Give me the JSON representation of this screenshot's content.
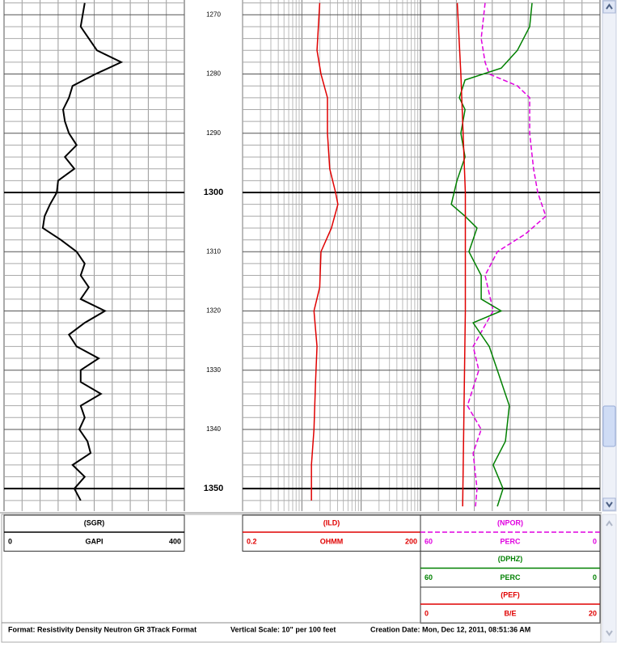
{
  "depth_axis": {
    "ylim": [
      1267.5,
      1353.8
    ],
    "ticks": [
      1270,
      1280,
      1290,
      1300,
      1310,
      1320,
      1330,
      1340,
      1350
    ]
  },
  "tracks": [
    {
      "log": false,
      "curves": [
        {
          "name": "(SGR)",
          "unit": "GAPI",
          "left": 0,
          "right": 400,
          "color": "#000000",
          "dash": false,
          "depths": [
            1268,
            1272,
            1276,
            1278,
            1280,
            1282,
            1284,
            1286,
            1288,
            1290,
            1292,
            1294,
            1296,
            1298,
            1300,
            1302,
            1304,
            1306,
            1308,
            1310,
            1312,
            1314,
            1316,
            1318,
            1320,
            1322,
            1324,
            1326,
            1328,
            1330,
            1332,
            1334,
            1336,
            1338,
            1340,
            1342,
            1344,
            1346,
            1348,
            1350,
            1352
          ],
          "values": [
            179,
            170,
            206,
            260,
            203,
            152,
            144,
            131,
            135,
            144,
            161,
            135,
            156,
            120,
            117,
            102,
            90,
            86,
            126,
            161,
            179,
            170,
            188,
            170,
            224,
            179,
            144,
            161,
            210,
            170,
            170,
            215,
            170,
            179,
            167,
            185,
            192,
            152,
            179,
            156,
            170
          ]
        }
      ]
    },
    {
      "log": true,
      "curves": [
        {
          "name": "(ILD)",
          "unit": "OHMM",
          "left": 0.2,
          "right": 200,
          "color": "#e00000",
          "dash": false,
          "depths": [
            1268,
            1276,
            1280,
            1284,
            1290,
            1296,
            1300,
            1302,
            1306,
            1310,
            1316,
            1320,
            1326,
            1332,
            1340,
            1346,
            1352
          ],
          "values": [
            4.0,
            3.6,
            4.2,
            5.4,
            5.4,
            5.9,
            7.4,
            8.1,
            6.3,
            4.2,
            4.0,
            3.2,
            3.6,
            3.4,
            3.2,
            2.9,
            2.9
          ]
        }
      ]
    },
    {
      "log": false,
      "curves": [
        {
          "name": "(NPOR)",
          "unit": "PERC",
          "left": 60,
          "right": 0,
          "color": "#e000e0",
          "dash": true,
          "depths": [
            1268,
            1274,
            1278,
            1280,
            1282,
            1284,
            1290,
            1296,
            1300,
            1304,
            1307,
            1310,
            1314,
            1320,
            1326,
            1330,
            1336,
            1340,
            1344,
            1350,
            1353
          ],
          "values": [
            38.4,
            39.7,
            38.4,
            37.0,
            27.6,
            23.5,
            23.5,
            22.2,
            20.8,
            18.1,
            24.9,
            34.3,
            38.4,
            35.7,
            42.4,
            40.5,
            44.3,
            39.7,
            42.4,
            41.1,
            41.6
          ]
        },
        {
          "name": "(DPHZ)",
          "unit": "PERC",
          "left": 60,
          "right": 0,
          "color": "#008000",
          "dash": false,
          "depths": [
            1268,
            1272,
            1276,
            1279,
            1281,
            1284,
            1286,
            1290,
            1294,
            1298,
            1302,
            1304,
            1306,
            1310,
            1314,
            1318,
            1320,
            1322,
            1326,
            1330,
            1336,
            1342,
            1346,
            1350,
            1353
          ],
          "values": [
            22.7,
            23.5,
            27.6,
            33.0,
            45.1,
            47.0,
            45.1,
            46.5,
            45.1,
            47.8,
            49.7,
            45.1,
            41.1,
            43.8,
            39.7,
            39.7,
            33.0,
            42.4,
            37.0,
            34.3,
            30.3,
            31.6,
            35.7,
            32.4,
            34.3
          ]
        },
        {
          "name": "(PEF)",
          "unit": "B/E",
          "left": 0,
          "right": 20,
          "color": "#e00000",
          "dash": false,
          "depths": [
            1268,
            1280,
            1300,
            1320,
            1353
          ],
          "values": [
            4.1,
            4.5,
            5.0,
            5.0,
            4.7
          ]
        }
      ]
    }
  ],
  "footer": {
    "format": "Format: Resistivity Density Neutron GR 3Track Format",
    "scale": "Vertical Scale: 10\" per 100 feet",
    "date": "Creation Date: Mon, Dec 12, 2011, 08:51:36 AM"
  }
}
